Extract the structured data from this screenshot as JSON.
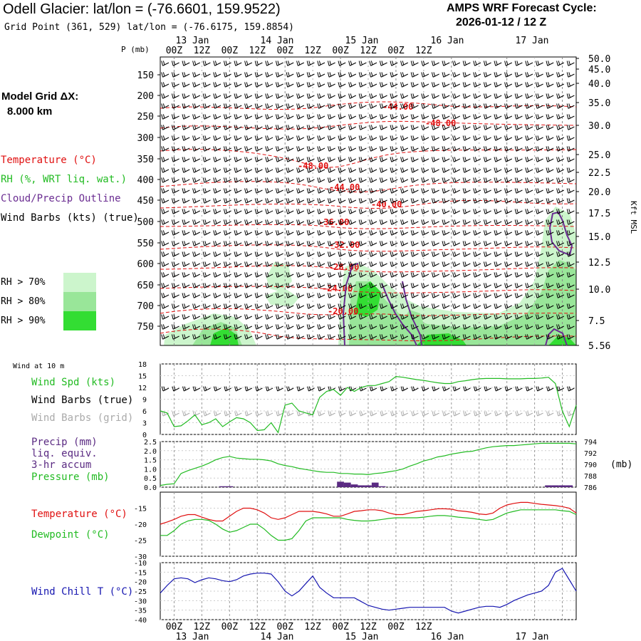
{
  "header": {
    "title": "Odell Glacier:  lat/lon = (-76.6601, 159.9522)",
    "grid_point": "Grid Point (361, 529) lat/lon = (-76.6175, 159.8854)",
    "forecast_label": "AMPS WRF Forecast Cycle:",
    "forecast_cycle": "2026-01-12 / 12  Z"
  },
  "model_grid": {
    "label": "Model Grid ΔX:",
    "value": "8.000 km"
  },
  "colors": {
    "temperature": "#e01010",
    "rh": "#22bb22",
    "cloud": "#6a2c91",
    "pressure": "#22bb22",
    "precip_bar": "#5a2a82",
    "wind_barb_grid": "#aaaaaa",
    "wind_chill": "#1515b0",
    "rh_70": "#ccf5cc",
    "rh_80": "#99e699",
    "rh_90": "#33dd33"
  },
  "legend": {
    "temperature": "Temperature (°C)",
    "rh": "RH (%, WRT liq. wat.)",
    "cloud": "Cloud/Precip Outline",
    "wind": "Wind Barbs (kts) (true)",
    "rh_levels": [
      "RH > 70%",
      "RH > 80%",
      "RH > 90%"
    ]
  },
  "time_axis": {
    "top_days": [
      "13 Jan",
      "14 Jan",
      "15 Jan",
      "16 Jan",
      "17 Jan"
    ],
    "top_hours": [
      "00Z",
      "12Z",
      "00Z",
      "12Z",
      "00Z",
      "12Z",
      "00Z",
      "12Z",
      "00Z",
      "12Z"
    ],
    "bottom_hours": [
      "00Z",
      "12Z",
      "00Z",
      "12Z",
      "00Z",
      "12Z",
      "00Z",
      "12Z",
      "00Z",
      "12Z"
    ],
    "bottom_days": [
      "13 Jan",
      "14 Jan",
      "15 Jan",
      "16 Jan",
      "17 Jan"
    ]
  },
  "panel_top": {
    "p_axis_label": "P (mb)",
    "right_axis_label": "Kft MSL",
    "pressure_ticks": [
      "150",
      "200",
      "250",
      "300",
      "350",
      "400",
      "450",
      "500",
      "550",
      "600",
      "650",
      "700",
      "750"
    ],
    "kft_ticks": [
      "50.0",
      "45.0",
      "40.0",
      "35.0",
      "30.0",
      "25.0",
      "22.5",
      "20.0",
      "17.5",
      "15.0",
      "12.5",
      "10.0",
      "7.5",
      "5.56"
    ],
    "temp_labels": [
      "-44.00",
      "-48.00",
      "-48.00",
      "-44.00",
      "-40.00",
      "-36.00",
      "-32.00",
      "-28.00",
      "-24.00",
      "-20.00"
    ]
  },
  "chart_data": [
    {
      "type": "line",
      "title": "Wind at 10 m",
      "legend": [
        "Wind Spd (kts)",
        "Wind Barbs (true)",
        "Wind Barbs (grid)"
      ],
      "x_hours": [
        -6,
        -3,
        0,
        3,
        6,
        9,
        12,
        15,
        18,
        21,
        24,
        27,
        30,
        33,
        36,
        39,
        42,
        45,
        48,
        51,
        54,
        57,
        60,
        63,
        66,
        69,
        72,
        75,
        78,
        81,
        84,
        87,
        90,
        93,
        96,
        99,
        102,
        105,
        108,
        111,
        114,
        117,
        120,
        123,
        126,
        129,
        132,
        135,
        138,
        141,
        144,
        147,
        150,
        153,
        156,
        159,
        162,
        165,
        168,
        171,
        174
      ],
      "series": [
        {
          "name": "Wind Spd (kts)",
          "values": [
            6,
            5.5,
            2,
            2.2,
            3.5,
            5,
            2.5,
            3,
            4,
            2,
            3.2,
            4.3,
            4,
            3,
            1,
            1.2,
            3,
            0.5,
            7.5,
            8,
            6,
            5.5,
            5,
            9.5,
            11,
            11.5,
            10,
            12,
            11,
            12,
            12.5,
            12.5,
            13,
            13.5,
            14.8,
            14.6,
            14.3,
            14,
            13.8,
            13.5,
            13.2,
            13,
            13,
            13.5,
            13.7,
            14,
            14.2,
            14.3,
            14.3,
            14.3,
            14.2,
            14.2,
            14.2,
            14.3,
            14.3,
            14.4,
            14.6,
            13,
            6,
            2,
            7.5
          ]
        }
      ],
      "ylim": [
        0,
        18
      ],
      "yticks": [
        0,
        3,
        6,
        9,
        12,
        15,
        18
      ]
    },
    {
      "type": "bar",
      "title": "Precip / Pressure",
      "legend": [
        "Precip (mm)",
        "liq. equiv.",
        "3-hr accum",
        "Pressure (mb)"
      ],
      "right_axis_label": "(mb)",
      "x_hours": [
        -6,
        -3,
        0,
        3,
        6,
        9,
        12,
        15,
        18,
        21,
        24,
        27,
        30,
        33,
        36,
        39,
        42,
        45,
        48,
        51,
        54,
        57,
        60,
        63,
        66,
        69,
        72,
        75,
        78,
        81,
        84,
        87,
        90,
        93,
        96,
        99,
        102,
        105,
        108,
        111,
        114,
        117,
        120,
        123,
        126,
        129,
        132,
        135,
        138,
        141,
        144,
        147,
        150,
        153,
        156,
        159,
        162,
        165,
        168,
        171,
        174
      ],
      "series": [
        {
          "name": "Precip (mm)",
          "axis": "left",
          "values": [
            0,
            0,
            0,
            0,
            0,
            0,
            0,
            0,
            0,
            0.05,
            0.05,
            0,
            0,
            0,
            0,
            0,
            0,
            0,
            0,
            0,
            0,
            0,
            0,
            0,
            0,
            0,
            0.3,
            0.25,
            0.15,
            0.1,
            0.1,
            0.25,
            0.05,
            0,
            0,
            0,
            0,
            0,
            0,
            0,
            0,
            0,
            0,
            0,
            0,
            0,
            0,
            0,
            0,
            0,
            0,
            0,
            0,
            0,
            0,
            0,
            0.1,
            0.1,
            0.1,
            0.1,
            0
          ]
        },
        {
          "name": "Pressure (mb)",
          "axis": "right",
          "values": [
            786.3,
            786.5,
            786.6,
            788.4,
            788.9,
            789.3,
            789.7,
            790.2,
            790.8,
            791.2,
            791.4,
            791.1,
            791.0,
            790.9,
            790.9,
            790.8,
            790.6,
            790.1,
            789.8,
            789.6,
            789.3,
            789.1,
            788.9,
            788.7,
            788.6,
            788.6,
            788.4,
            788.4,
            788.3,
            788.3,
            788.2,
            788.4,
            788.5,
            788.7,
            788.9,
            789.2,
            789.7,
            790.1,
            790.6,
            790.9,
            791.3,
            791.5,
            791.8,
            792.0,
            792.2,
            792.3,
            792.6,
            792.9,
            793.1,
            793.2,
            793.3,
            793.3,
            793.4,
            793.5,
            793.6,
            793.7,
            793.7,
            793.7,
            793.7,
            793.7,
            793.6
          ]
        }
      ],
      "ylim": [
        0,
        2.5
      ],
      "yticks": [
        "0.0",
        "0.5",
        "1.0",
        "1.5",
        "2.0",
        "2.5"
      ],
      "y2lim": [
        786,
        794
      ],
      "y2ticks": [
        "786",
        "788",
        "790",
        "792",
        "794"
      ]
    },
    {
      "type": "line",
      "title": "Temperature / Dewpoint",
      "legend": [
        "Temperature (°C)",
        "Dewpoint (°C)"
      ],
      "x_hours": [
        -6,
        -3,
        0,
        3,
        6,
        9,
        12,
        15,
        18,
        21,
        24,
        27,
        30,
        33,
        36,
        39,
        42,
        45,
        48,
        51,
        54,
        57,
        60,
        63,
        66,
        69,
        72,
        75,
        78,
        81,
        84,
        87,
        90,
        93,
        96,
        99,
        102,
        105,
        108,
        111,
        114,
        117,
        120,
        123,
        126,
        129,
        132,
        135,
        138,
        141,
        144,
        147,
        150,
        153,
        156,
        159,
        162,
        165,
        168,
        171,
        174
      ],
      "series": [
        {
          "name": "Temperature (°C)",
          "values": [
            -20,
            -19.3,
            -18.5,
            -17.5,
            -17,
            -17,
            -17.8,
            -18.5,
            -19,
            -19,
            -17.5,
            -16,
            -15,
            -15,
            -15.5,
            -16.5,
            -18,
            -18.5,
            -18,
            -17,
            -16,
            -16,
            -16,
            -16.3,
            -16.8,
            -17.5,
            -17.5,
            -16.8,
            -16,
            -15.8,
            -15.5,
            -15.5,
            -15.8,
            -16.5,
            -17,
            -17,
            -16.5,
            -16,
            -15.8,
            -15.5,
            -15.2,
            -15.2,
            -15.3,
            -15.8,
            -16,
            -16.3,
            -16.8,
            -17,
            -16.5,
            -15,
            -14,
            -13.5,
            -13.2,
            -13.2,
            -13.5,
            -13.8,
            -14,
            -14.2,
            -14.5,
            -15,
            -16.5
          ]
        },
        {
          "name": "Dewpoint (°C)",
          "values": [
            -23.5,
            -23.5,
            -22,
            -20,
            -19,
            -18.5,
            -18.5,
            -18.8,
            -20,
            -21.5,
            -22.5,
            -22,
            -21,
            -20,
            -20,
            -21.5,
            -23.5,
            -25,
            -25,
            -24.5,
            -22,
            -19,
            -18,
            -18,
            -18,
            -18,
            -18,
            -18.5,
            -18.8,
            -19,
            -19,
            -18.8,
            -18.5,
            -18.2,
            -18,
            -18,
            -18,
            -18,
            -17.8,
            -17.5,
            -17.3,
            -17.3,
            -17.5,
            -17.8,
            -18,
            -18.2,
            -18.5,
            -18.8,
            -18.5,
            -17.5,
            -16.5,
            -16,
            -15.5,
            -15.5,
            -15.5,
            -15.5,
            -15.5,
            -15.5,
            -15.8,
            -16,
            -17
          ]
        }
      ],
      "ylim": [
        -30,
        -10
      ],
      "yticks": [
        "-15",
        "-20",
        "-25",
        "-30"
      ]
    },
    {
      "type": "line",
      "title": "Wind Chill",
      "legend": [
        "Wind Chill T (°C)"
      ],
      "x_hours": [
        -6,
        -3,
        0,
        3,
        6,
        9,
        12,
        15,
        18,
        21,
        24,
        27,
        30,
        33,
        36,
        39,
        42,
        45,
        48,
        51,
        54,
        57,
        60,
        63,
        66,
        69,
        72,
        75,
        78,
        81,
        84,
        87,
        90,
        93,
        96,
        99,
        102,
        105,
        108,
        111,
        114,
        117,
        120,
        123,
        126,
        129,
        132,
        135,
        138,
        141,
        144,
        147,
        150,
        153,
        156,
        159,
        162,
        165,
        168,
        171,
        174
      ],
      "series": [
        {
          "name": "Wind Chill T (°C)",
          "values": [
            -26,
            -22,
            -18.5,
            -18,
            -18.5,
            -20.5,
            -19,
            -18,
            -18.5,
            -19.5,
            -20,
            -19,
            -17,
            -16,
            -15.5,
            -15.5,
            -16,
            -20,
            -25,
            -27.5,
            -25,
            -21,
            -17,
            -23,
            -26,
            -28.5,
            -28.5,
            -28.5,
            -28.5,
            -30.5,
            -32.5,
            -33.5,
            -34.5,
            -35,
            -34.5,
            -34,
            -33.5,
            -33.5,
            -33.5,
            -33.5,
            -33.5,
            -33.5,
            -35.5,
            -36.5,
            -35.5,
            -34.5,
            -33.5,
            -33,
            -33,
            -33.5,
            -32,
            -30,
            -28.5,
            -27,
            -26,
            -25,
            -22,
            -15,
            -13,
            -19,
            -25
          ]
        }
      ],
      "ylim": [
        -40,
        -10
      ],
      "yticks": [
        "-10",
        "-15",
        "-20",
        "-25",
        "-30",
        "-35",
        "-40"
      ]
    }
  ],
  "panels": {
    "wind": {
      "title": "Wind at 10 m",
      "legend_speed": "Wind Spd (kts)",
      "legend_barbs_true": "Wind Barbs (true)",
      "legend_barbs_grid": "Wind Barbs (grid)",
      "yticks": [
        "0",
        "3",
        "6",
        "9",
        "12",
        "15",
        "18"
      ]
    },
    "precip": {
      "legend": [
        "Precip (mm)",
        "liq. equiv.",
        "3-hr accum",
        "Pressure (mb)"
      ],
      "yticks": [
        "0.0",
        "0.5",
        "1.0",
        "1.5",
        "2.0",
        "2.5"
      ],
      "y2ticks": [
        "786",
        "788",
        "790",
        "792",
        "794"
      ],
      "right_label": "(mb)"
    },
    "temp": {
      "legend_temp": "Temperature (°C)",
      "legend_dew": "Dewpoint (°C)",
      "yticks": [
        "-15",
        "-20",
        "-25",
        "-30"
      ]
    },
    "chill": {
      "legend": "Wind Chill T (°C)",
      "yticks": [
        "-10",
        "-15",
        "-20",
        "-25",
        "-30",
        "-35",
        "-40"
      ]
    }
  }
}
